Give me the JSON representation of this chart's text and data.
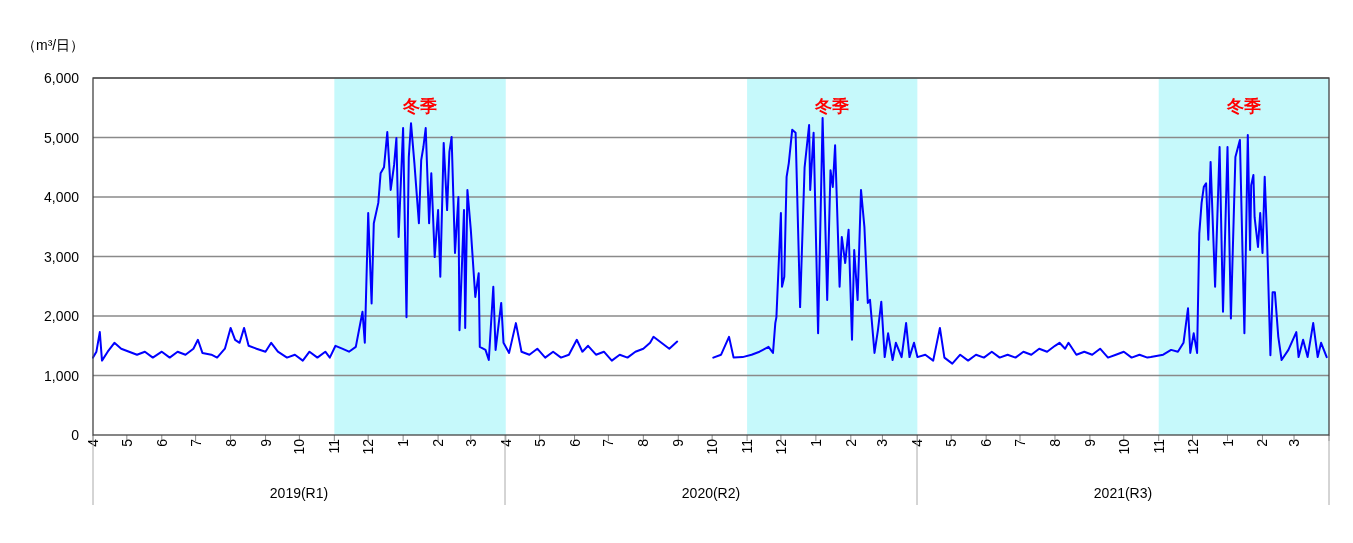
{
  "chart_data": {
    "type": "line",
    "ylabel": "（m³/日）",
    "x": [
      "2019-04-01",
      "2019-04-04",
      "2019-04-07",
      "2019-04-09",
      "2019-04-14",
      "2019-04-20",
      "2019-04-26",
      "2019-05-03",
      "2019-05-10",
      "2019-05-17",
      "2019-05-24",
      "2019-06-01",
      "2019-06-08",
      "2019-06-15",
      "2019-06-22",
      "2019-06-29",
      "2019-07-03",
      "2019-07-07",
      "2019-07-15",
      "2019-07-20",
      "2019-07-27",
      "2019-08-01",
      "2019-08-05",
      "2019-08-09",
      "2019-08-13",
      "2019-08-17",
      "2019-08-24",
      "2019-09-01",
      "2019-09-06",
      "2019-09-12",
      "2019-09-20",
      "2019-09-27",
      "2019-10-04",
      "2019-10-10",
      "2019-10-17",
      "2019-10-24",
      "2019-10-28",
      "2019-11-02",
      "2019-11-08",
      "2019-11-14",
      "2019-11-20",
      "2019-11-26",
      "2019-11-28",
      "2019-12-01",
      "2019-12-04",
      "2019-12-06",
      "2019-12-10",
      "2019-12-12",
      "2019-12-15",
      "2019-12-18",
      "2019-12-21",
      "2019-12-24",
      "2019-12-26",
      "2019-12-28",
      "2020-01-01",
      "2020-01-04",
      "2020-01-06",
      "2020-01-08",
      "2020-01-11",
      "2020-01-15",
      "2020-01-17",
      "2020-01-19",
      "2020-01-21",
      "2020-01-24",
      "2020-01-26",
      "2020-01-29",
      "2020-02-01",
      "2020-02-03",
      "2020-02-06",
      "2020-02-09",
      "2020-02-11",
      "2020-02-13",
      "2020-02-16",
      "2020-02-19",
      "2020-02-20",
      "2020-02-24",
      "2020-02-25",
      "2020-02-27",
      "2020-03-01",
      "2020-03-05",
      "2020-03-08",
      "2020-03-09",
      "2020-03-14",
      "2020-03-17",
      "2020-03-21",
      "2020-03-23",
      "2020-03-28",
      "2020-03-30",
      "2020-04-04",
      "2020-04-10",
      "2020-04-15",
      "2020-04-22",
      "2020-04-29",
      "2020-05-06",
      "2020-05-13",
      "2020-05-20",
      "2020-05-27",
      "2020-06-03",
      "2020-06-08",
      "2020-06-13",
      "2020-06-20",
      "2020-06-27",
      "2020-07-04",
      "2020-07-11",
      "2020-07-18",
      "2020-07-25",
      "2020-08-01",
      "2020-08-07",
      "2020-08-10",
      "2020-08-17",
      "2020-08-24",
      "2020-08-31",
      "2020-09-15",
      "2020-10-02",
      "2020-10-09",
      "2020-10-16",
      "2020-10-20",
      "2020-10-28",
      "2020-11-05",
      "2020-11-12",
      "2020-11-20",
      "2020-11-24",
      "2020-11-26",
      "2020-11-27",
      "2020-12-01",
      "2020-12-02",
      "2020-12-04",
      "2020-12-06",
      "2020-12-08",
      "2020-12-11",
      "2020-12-14",
      "2020-12-18",
      "2020-12-22",
      "2020-12-26",
      "2020-12-27",
      "2020-12-30",
      "2021-01-03",
      "2021-01-07",
      "2021-01-11",
      "2021-01-14",
      "2021-01-16",
      "2021-01-18",
      "2021-01-22",
      "2021-01-24",
      "2021-01-27",
      "2021-01-30",
      "2021-02-02",
      "2021-02-04",
      "2021-02-07",
      "2021-02-10",
      "2021-02-13",
      "2021-02-16",
      "2021-02-18",
      "2021-02-22",
      "2021-02-25",
      "2021-02-28",
      "2021-03-03",
      "2021-03-06",
      "2021-03-10",
      "2021-03-13",
      "2021-03-18",
      "2021-03-22",
      "2021-03-25",
      "2021-03-29",
      "2021-04-01",
      "2021-04-08",
      "2021-04-15",
      "2021-04-21",
      "2021-04-25",
      "2021-05-02",
      "2021-05-09",
      "2021-05-16",
      "2021-05-23",
      "2021-05-30",
      "2021-06-06",
      "2021-06-13",
      "2021-06-20",
      "2021-06-27",
      "2021-07-04",
      "2021-07-11",
      "2021-07-18",
      "2021-07-25",
      "2021-08-01",
      "2021-08-05",
      "2021-08-10",
      "2021-08-13",
      "2021-08-20",
      "2021-08-27",
      "2021-09-03",
      "2021-09-10",
      "2021-09-17",
      "2021-09-24",
      "2021-10-01",
      "2021-10-08",
      "2021-10-15",
      "2021-10-22",
      "2021-10-25",
      "2021-11-05",
      "2021-11-12",
      "2021-11-18",
      "2021-11-23",
      "2021-11-27",
      "2021-11-29",
      "2021-12-02",
      "2021-12-05",
      "2021-12-07",
      "2021-12-09",
      "2021-12-11",
      "2021-12-13",
      "2021-12-15",
      "2021-12-17",
      "2021-12-21",
      "2021-12-25",
      "2021-12-28",
      "2022-01-01",
      "2022-01-04",
      "2022-01-08",
      "2022-01-12",
      "2022-01-16",
      "2022-01-19",
      "2022-01-21",
      "2022-01-22",
      "2022-01-24",
      "2022-01-25",
      "2022-01-28",
      "2022-01-30",
      "2022-02-01",
      "2022-02-03",
      "2022-02-05",
      "2022-02-08",
      "2022-02-10",
      "2022-02-12",
      "2022-02-15",
      "2022-02-18",
      "2022-02-24",
      "2022-03-03",
      "2022-03-05",
      "2022-03-09",
      "2022-03-13",
      "2022-03-18",
      "2022-03-22",
      "2022-03-25",
      "2022-03-30"
    ],
    "series": [
      {
        "color": "#0000ff",
        "values": [
          1300,
          1400,
          1730,
          1250,
          1400,
          1550,
          1450,
          1400,
          1350,
          1400,
          1300,
          1400,
          1300,
          1400,
          1350,
          1450,
          1600,
          1380,
          1350,
          1300,
          1450,
          1800,
          1600,
          1550,
          1800,
          1500,
          1450,
          1400,
          1550,
          1400,
          1300,
          1350,
          1250,
          1400,
          1300,
          1400,
          1300,
          1500,
          1450,
          1400,
          1480,
          2070,
          1550,
          3730,
          2210,
          3560,
          3900,
          4400,
          4500,
          5090,
          4120,
          4540,
          4990,
          3330,
          5160,
          1980,
          4670,
          5240,
          4570,
          3560,
          4620,
          4840,
          5160,
          3560,
          4400,
          2990,
          3780,
          2660,
          4910,
          3780,
          4760,
          5010,
          3060,
          4000,
          1760,
          3780,
          1800,
          4120,
          3450,
          2320,
          2720,
          1480,
          1430,
          1260,
          2490,
          1430,
          2220,
          1550,
          1380,
          1880,
          1400,
          1350,
          1450,
          1300,
          1400,
          1300,
          1350,
          1600,
          1400,
          1500,
          1350,
          1400,
          1250,
          1350,
          1300,
          1400,
          1450,
          1550,
          1650,
          1550,
          1450,
          1570,
          null,
          1300,
          1350,
          1650,
          1300,
          1310,
          1350,
          1400,
          1480,
          1380,
          1880,
          1980,
          3730,
          2490,
          2660,
          4340,
          4570,
          5130,
          5080,
          2150,
          4500,
          5210,
          4120,
          5080,
          1710,
          5330,
          2270,
          4450,
          4170,
          4870,
          2490,
          3330,
          2890,
          3450,
          1600,
          3110,
          2270,
          4120,
          3500,
          2220,
          2270,
          1380,
          1760,
          2240,
          1310,
          1710,
          1260,
          1550,
          1310,
          1880,
          1310,
          1550,
          1310,
          1350,
          1250,
          1800,
          1300,
          1200,
          1350,
          1250,
          1350,
          1300,
          1400,
          1300,
          1350,
          1300,
          1400,
          1350,
          1450,
          1400,
          1500,
          1550,
          1450,
          1550,
          1350,
          1400,
          1350,
          1450,
          1300,
          1350,
          1400,
          1300,
          1350,
          1300,
          1310,
          1350,
          1430,
          1400,
          1550,
          2130,
          1380,
          1710,
          1380,
          3390,
          3900,
          4170,
          4230,
          3280,
          4590,
          2490,
          4840,
          2070,
          4840,
          1960,
          4670,
          4960,
          1710,
          5040,
          3110,
          4200,
          4370,
          3660,
          3160,
          3730,
          3060,
          4340,
          3330,
          1340,
          2400,
          2400,
          1650,
          1260,
          1430,
          1730,
          1310,
          1600,
          1310,
          1880,
          1310,
          1550,
          1310
        ]
      }
    ],
    "xlim": [
      "2019-04-01",
      "2022-04-01"
    ],
    "xticks": [
      {
        "value": "2019-04-01",
        "label": "4"
      },
      {
        "value": "2019-05-01",
        "label": "5"
      },
      {
        "value": "2019-06-01",
        "label": "6"
      },
      {
        "value": "2019-07-01",
        "label": "7"
      },
      {
        "value": "2019-08-01",
        "label": "8"
      },
      {
        "value": "2019-09-01",
        "label": "9"
      },
      {
        "value": "2019-10-01",
        "label": "10"
      },
      {
        "value": "2019-11-01",
        "label": "11"
      },
      {
        "value": "2019-12-01",
        "label": "12"
      },
      {
        "value": "2020-01-01",
        "label": "1"
      },
      {
        "value": "2020-02-01",
        "label": "2"
      },
      {
        "value": "2020-03-01",
        "label": "3"
      },
      {
        "value": "2020-04-01",
        "label": "4"
      },
      {
        "value": "2020-05-01",
        "label": "5"
      },
      {
        "value": "2020-06-01",
        "label": "6"
      },
      {
        "value": "2020-07-01",
        "label": "7"
      },
      {
        "value": "2020-08-01",
        "label": "8"
      },
      {
        "value": "2020-09-01",
        "label": "9"
      },
      {
        "value": "2020-10-01",
        "label": "10"
      },
      {
        "value": "2020-11-01",
        "label": "11"
      },
      {
        "value": "2020-12-01",
        "label": "12"
      },
      {
        "value": "2021-01-01",
        "label": "1"
      },
      {
        "value": "2021-02-01",
        "label": "2"
      },
      {
        "value": "2021-03-01",
        "label": "3"
      },
      {
        "value": "2021-04-01",
        "label": "4"
      },
      {
        "value": "2021-05-01",
        "label": "5"
      },
      {
        "value": "2021-06-01",
        "label": "6"
      },
      {
        "value": "2021-07-01",
        "label": "7"
      },
      {
        "value": "2021-08-01",
        "label": "8"
      },
      {
        "value": "2021-09-01",
        "label": "9"
      },
      {
        "value": "2021-10-01",
        "label": "10"
      },
      {
        "value": "2021-11-01",
        "label": "11"
      },
      {
        "value": "2021-12-01",
        "label": "12"
      },
      {
        "value": "2022-01-01",
        "label": "1"
      },
      {
        "value": "2022-02-01",
        "label": "2"
      },
      {
        "value": "2022-03-01",
        "label": "3"
      },
      {
        "value": "2022-04-01",
        "label": null
      }
    ],
    "ylim": [
      0,
      6000
    ],
    "yticks": [
      0,
      {
        "value": 1000,
        "label": "1,000"
      },
      {
        "value": 2000,
        "label": "2,000"
      },
      {
        "value": 3000,
        "label": "3,000"
      },
      {
        "value": 4000,
        "label": "4,000"
      },
      {
        "value": 5000,
        "label": "5,000"
      },
      {
        "value": 6000,
        "label": "6,000"
      }
    ],
    "bands": [
      {
        "axis": "x",
        "from": "2019-11-01",
        "to": "2020-04-01",
        "label": "冬季",
        "color": "#c6f9fb"
      },
      {
        "axis": "x",
        "from": "2020-11-01",
        "to": "2021-04-01",
        "label": "冬季",
        "color": "#c6f9fb"
      },
      {
        "axis": "x",
        "from": "2021-11-01",
        "to": "2022-04-01",
        "label": "冬季",
        "color": "#c6f9fb"
      }
    ],
    "annotations": [
      "2019(R1)",
      "2020(R2)",
      "2021(R3)"
    ],
    "grid": "y"
  }
}
